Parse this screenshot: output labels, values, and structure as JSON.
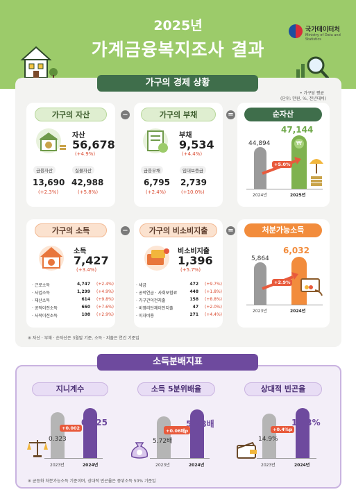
{
  "header": {
    "year": "2025년",
    "title": "가계금융복지조사 결과",
    "org_name": "국가데이터처",
    "org_sub": "Ministry of Data and Statistics"
  },
  "economy": {
    "title": "가구의 경제 상황",
    "unit_note_1": "• 가구당 평균",
    "unit_note_2": "(단위: 만원, %, 전년대비)",
    "assets": {
      "pill": "가구의 자산",
      "label": "자산",
      "value": "56,678",
      "change": "(+4.9%)",
      "sub1_label": "금융자산",
      "sub1_value": "13,690",
      "sub1_change": "(+2.3%)",
      "sub2_label": "실물자산",
      "sub2_value": "42,988",
      "sub2_change": "(+5.8%)"
    },
    "op_minus_1": "−",
    "debt": {
      "pill": "가구의 부채",
      "label": "부채",
      "value": "9,534",
      "change": "(+4.4%)",
      "sub1_label": "금융부채",
      "sub1_value": "6,795",
      "sub1_change": "(+2.4%)",
      "sub2_label": "임대보증금",
      "sub2_value": "2,739",
      "sub2_change": "(+10.0%)"
    },
    "op_equals_1": "=",
    "net": {
      "pill": "순자산",
      "prev_value": "44,894",
      "curr_value": "47,144",
      "delta": "+5.0%",
      "prev_year": "2024년",
      "curr_year": "2025년"
    },
    "income": {
      "pill": "가구의 소득",
      "label": "소득",
      "value": "7,427",
      "change": "(+3.4%)",
      "rows": [
        {
          "name": "· 근로소득",
          "value": "4,747",
          "change": "(+2.4%)"
        },
        {
          "name": "· 사업소득",
          "value": "1,299",
          "change": "(+4.9%)"
        },
        {
          "name": "· 재산소득",
          "value": "614",
          "change": "(+9.8%)"
        },
        {
          "name": "· 공적이전소득",
          "value": "660",
          "change": "(+7.6%)"
        },
        {
          "name": "· 사적이전소득",
          "value": "108",
          "change": "(+2.9%)"
        }
      ]
    },
    "op_minus_2": "−",
    "nonconsumption": {
      "pill": "가구의 비소비지출",
      "label": "비소비지출",
      "value": "1,396",
      "change": "(+5.7%)",
      "rows": [
        {
          "name": "· 세금",
          "value": "472",
          "change": "(+9.7%)"
        },
        {
          "name": "· 공적연금 · 사회보험료",
          "value": "448",
          "change": "(+1.8%)"
        },
        {
          "name": "· 가구간이전지출",
          "value": "158",
          "change": "(+8.8%)"
        },
        {
          "name": "· 비영리단체이전지출",
          "value": "47",
          "change": "(+2.0%)"
        },
        {
          "name": "· 이자비용",
          "value": "271",
          "change": "(+4.4%)"
        }
      ]
    },
    "op_equals_2": "=",
    "disposable": {
      "pill": "처분가능소득",
      "prev_value": "5,864",
      "curr_value": "6,032",
      "delta": "+2.9%",
      "prev_year": "2023년",
      "curr_year": "2024년"
    },
    "footnote": "※ 자산 · 부채 · 순자산은 3월말 기준, 소득 · 지출은 연간 기준임"
  },
  "distribution": {
    "title": "소득분배지표",
    "gini": {
      "pill": "지니계수",
      "prev_value": "0.323",
      "curr_value": "0.325",
      "delta": "+0.002",
      "prev_year": "2023년",
      "curr_year": "2024년"
    },
    "quintile": {
      "pill": "소득 5분위배율",
      "prev_value": "5.72배",
      "curr_value": "5.78배",
      "delta": "+0.06배p",
      "prev_year": "2023년",
      "curr_year": "2024년"
    },
    "poverty": {
      "pill": "상대적 빈곤율",
      "prev_value": "14.9%",
      "curr_value": "15.3%",
      "delta": "+0.4%p",
      "prev_year": "2023년",
      "curr_year": "2024년"
    },
    "footnote": "※ 균등화 처분가능소득 기준이며, 상대적 빈곤율은 중위소득 50% 기준임"
  }
}
